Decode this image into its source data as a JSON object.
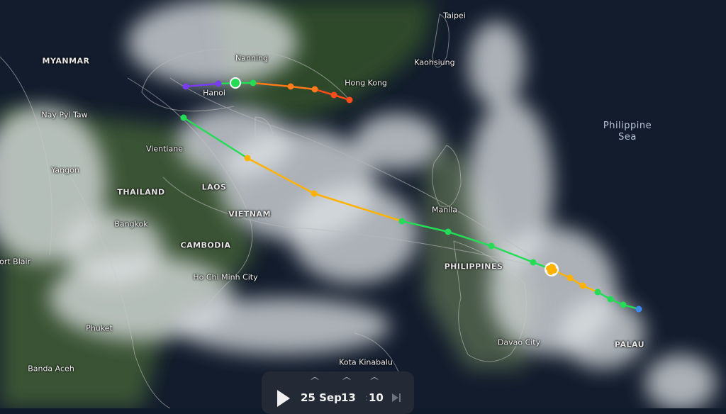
{
  "map": {
    "labels": {
      "countries": [
        "MYANMAR",
        "THAILAND",
        "LAOS",
        "VIETNAM",
        "CAMBODIA",
        "PHILIPPINES",
        "PALAU"
      ],
      "cities": [
        "Nanning",
        "Hanoi",
        "Hong Kong",
        "Taipei",
        "Kaohsiung",
        "Nay Pyi Taw",
        "Vientiane",
        "Yangon",
        "Bangkok",
        "Manila",
        "Ho Chi Minh City",
        "Port Blair",
        "Phuket",
        "Banda Aceh",
        "Kota Kinabalu",
        "Davao City"
      ],
      "sea": "Philippine Sea"
    },
    "track_colors": {
      "tropical_depression": "#3b8bf0",
      "tropical_storm": "#22dd55",
      "typhoon": "#ffb300",
      "strong": "#ff7a1a",
      "severe": "#ff4a1a",
      "remnant": "#7a3cf0"
    },
    "storm_icon": "typhoon-icon"
  },
  "timeline": {
    "date": "25 Sep",
    "hour": "13",
    "minute": "10",
    "play_icon": "play-icon",
    "skip_icon": "skip-end-icon"
  }
}
